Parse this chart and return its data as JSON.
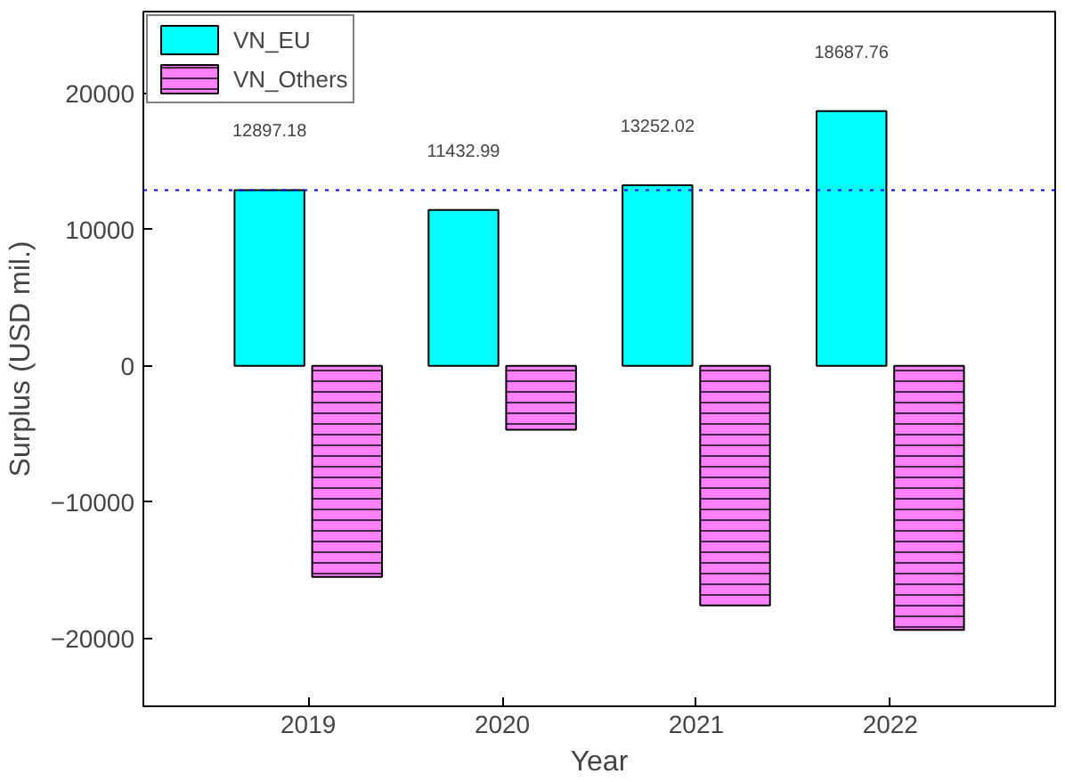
{
  "chart_data": {
    "type": "bar",
    "xlabel": "Year",
    "ylabel": "Surplus (USD mil.)",
    "categories": [
      "2019",
      "2020",
      "2021",
      "2022"
    ],
    "series": [
      {
        "name": "VN_EU",
        "color": "#00ffff",
        "values": [
          12897.18,
          11432.99,
          13252.02,
          18687.76
        ],
        "value_labels": [
          "12897.18",
          "11432.99",
          "13252.02",
          "18687.76"
        ]
      },
      {
        "name": "VN_Others",
        "color": "#ff80ff",
        "values": [
          -15500,
          -4700,
          -17600,
          -19400
        ]
      }
    ],
    "ylim": [
      -25000,
      26000
    ],
    "yticks": [
      -20000,
      -10000,
      0,
      10000,
      20000
    ],
    "ref_lines": [
      {
        "axis": "y",
        "value": 12897.18,
        "label": null,
        "color": "#0000ff",
        "line_style": "dotted"
      }
    ],
    "grid": false,
    "legend": "top left"
  }
}
